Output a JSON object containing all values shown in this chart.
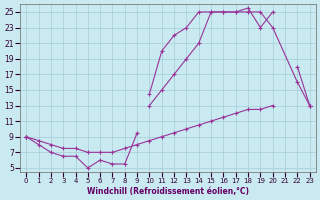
{
  "background_color": "#c8eaf0",
  "grid_color": "#a8ccd8",
  "line_color": "#993399",
  "xlabel": "Windchill (Refroidissement éolien,°C)",
  "xlim": [
    -0.5,
    23.5
  ],
  "ylim": [
    4.5,
    26
  ],
  "xticks": [
    0,
    1,
    2,
    3,
    4,
    5,
    6,
    7,
    8,
    9,
    10,
    11,
    12,
    13,
    14,
    15,
    16,
    17,
    18,
    19,
    20,
    21,
    22,
    23
  ],
  "yticks": [
    5,
    7,
    9,
    11,
    13,
    15,
    17,
    19,
    21,
    23,
    25
  ],
  "series": [
    {
      "x": [
        0,
        1,
        2,
        3,
        4,
        5,
        6,
        7,
        8,
        9,
        10,
        11,
        12,
        13,
        14,
        15,
        16,
        17,
        18,
        19,
        20,
        21,
        22,
        23
      ],
      "y": [
        9,
        8.5,
        8,
        7.5,
        7.5,
        7,
        7,
        7,
        7.5,
        8,
        8.5,
        9,
        9.5,
        10,
        10.5,
        11,
        11.5,
        12,
        12.5,
        12.5,
        13,
        null,
        null,
        13
      ]
    },
    {
      "x": [
        0,
        1,
        2,
        3,
        4,
        5,
        6,
        7,
        8,
        9,
        10,
        11,
        12,
        13,
        14,
        15,
        16,
        17,
        18,
        19,
        20,
        21,
        22,
        23
      ],
      "y": [
        9,
        8,
        7,
        6.5,
        6.5,
        5,
        6,
        5.5,
        5.5,
        9.5,
        null,
        null,
        null,
        null,
        null,
        null,
        null,
        null,
        null,
        null,
        null,
        null,
        null,
        null
      ]
    },
    {
      "x": [
        0,
        2,
        9,
        10,
        11,
        12,
        13,
        14,
        15,
        16,
        17,
        18,
        19,
        20,
        21,
        22,
        23
      ],
      "y": [
        9,
        null,
        null,
        13,
        15,
        17,
        19,
        21,
        25,
        25,
        25,
        25.5,
        23,
        25,
        null,
        18,
        13
      ]
    },
    {
      "x": [
        0,
        9,
        10,
        11,
        12,
        13,
        14,
        15,
        16,
        17,
        18,
        19,
        20,
        22,
        23
      ],
      "y": [
        9,
        null,
        14.5,
        20,
        22,
        23,
        25,
        25,
        25,
        25,
        25,
        25,
        23,
        16,
        13
      ]
    }
  ]
}
